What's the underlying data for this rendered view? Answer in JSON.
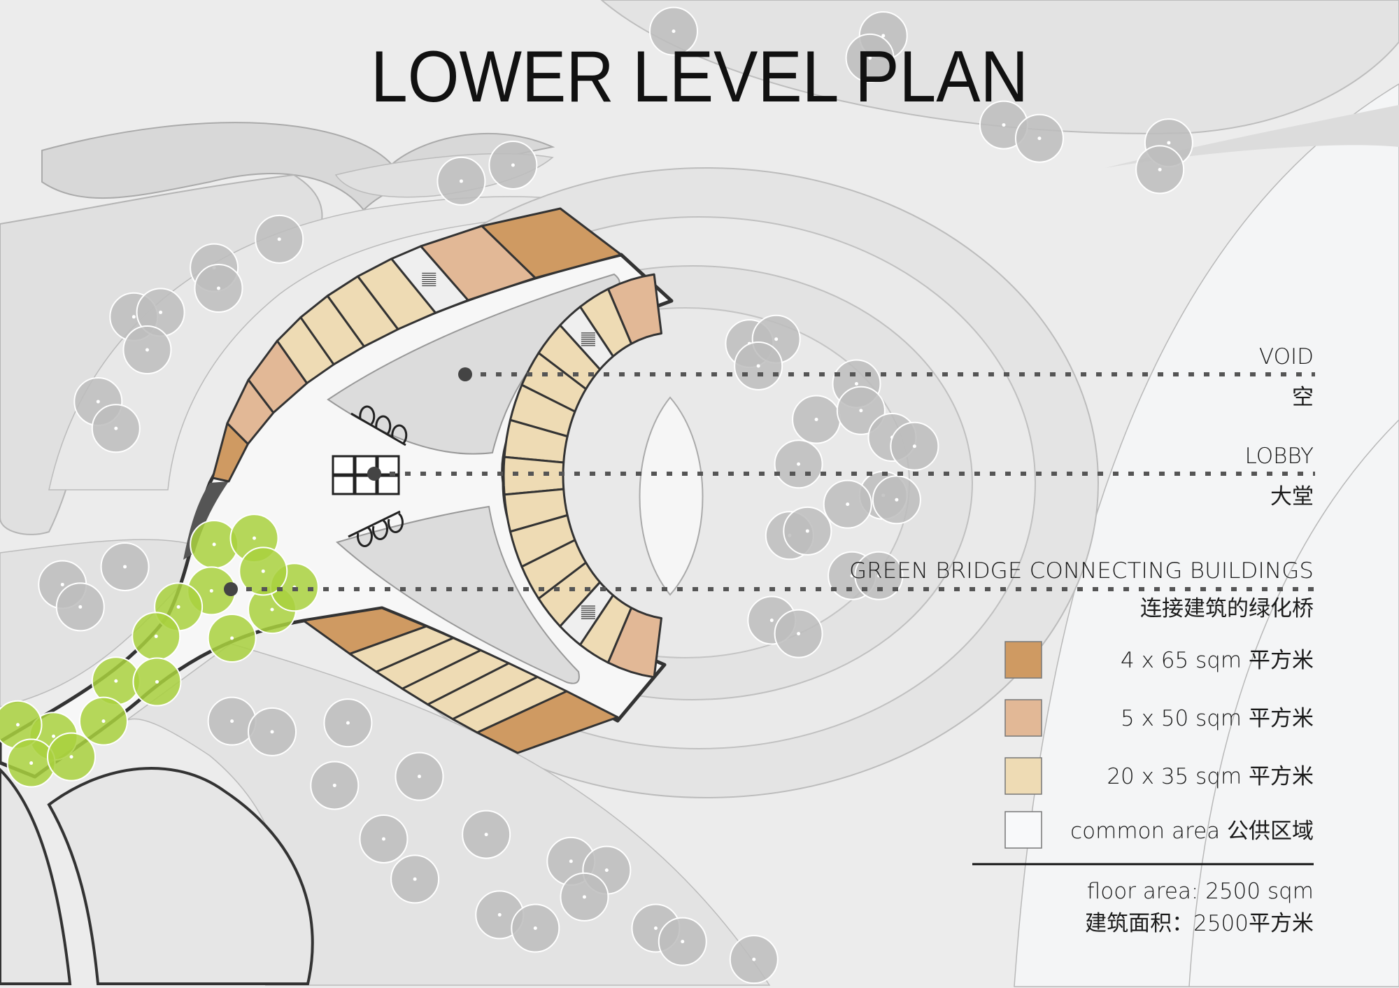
{
  "title": "LOWER LEVEL PLAN",
  "annotations": [
    {
      "en": "VOID",
      "zh": "空"
    },
    {
      "en": "LOBBY",
      "zh": "大堂"
    },
    {
      "en": "GREEN BRIDGE CONNECTING BUILDINGS",
      "zh": "连接建筑的绿化桥"
    }
  ],
  "legend": [
    {
      "label": "4 x 65 sqm  平方米",
      "color": "#cf9a62"
    },
    {
      "label": "5 x 50 sqm  平方米",
      "color": "#e2b896"
    },
    {
      "label": "20 x 35 sqm  平方米",
      "color": "#eedbb4"
    },
    {
      "label": "common area  公供区域",
      "color": "#f8f9fa"
    }
  ],
  "floor_area": {
    "en": "floor area: 2500 sqm",
    "zh": "建筑面积：2500平方米"
  },
  "colors": {
    "unit_65": "#cf9a62",
    "unit_50": "#e2b896",
    "unit_35": "#eedbb4",
    "stair": "#efefef",
    "green_tree": "#a9d13e",
    "grey_tree": "#bdbdbd",
    "outline": "#333333"
  }
}
